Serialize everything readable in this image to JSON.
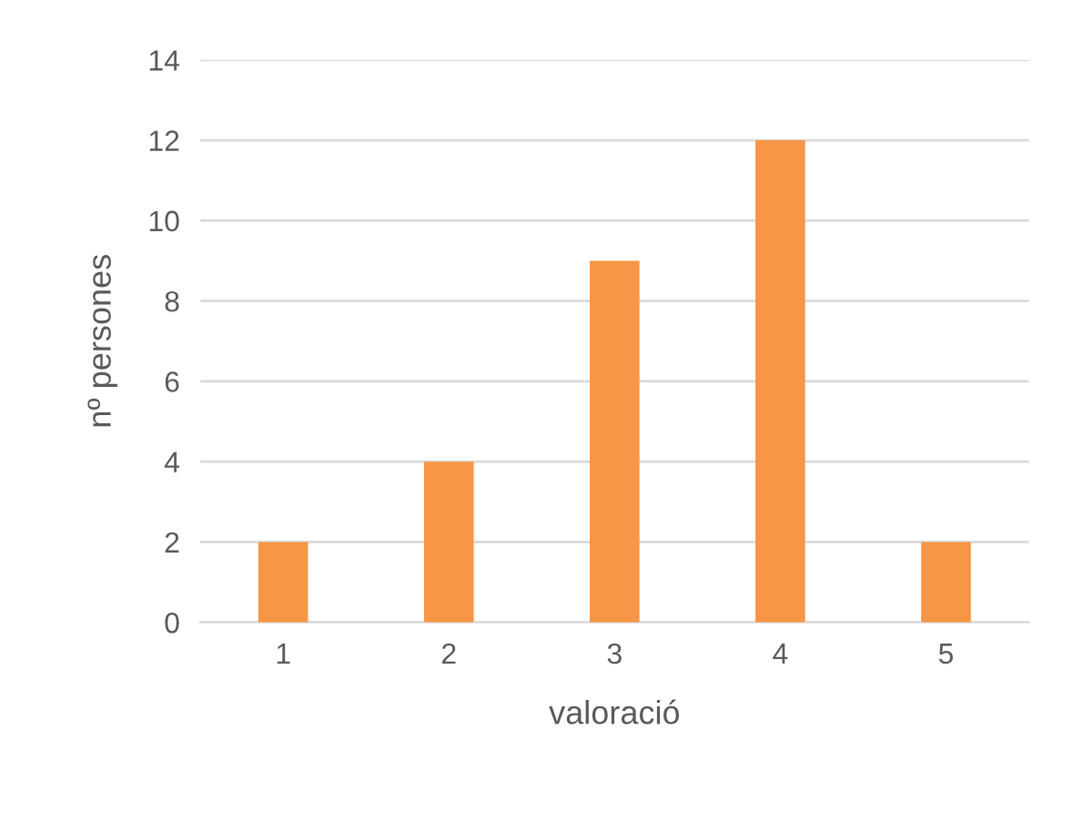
{
  "chart_data": {
    "type": "bar",
    "xlabel": "valoració",
    "ylabel": "nº persones",
    "categories": [
      "1",
      "2",
      "3",
      "4",
      "5"
    ],
    "values": [
      2,
      4,
      9,
      12,
      2
    ],
    "color": "#f79646",
    "ylim": [
      0,
      14
    ],
    "yticks": [
      0,
      2,
      4,
      6,
      8,
      10,
      12,
      14
    ],
    "grid": "y",
    "legend": false
  }
}
